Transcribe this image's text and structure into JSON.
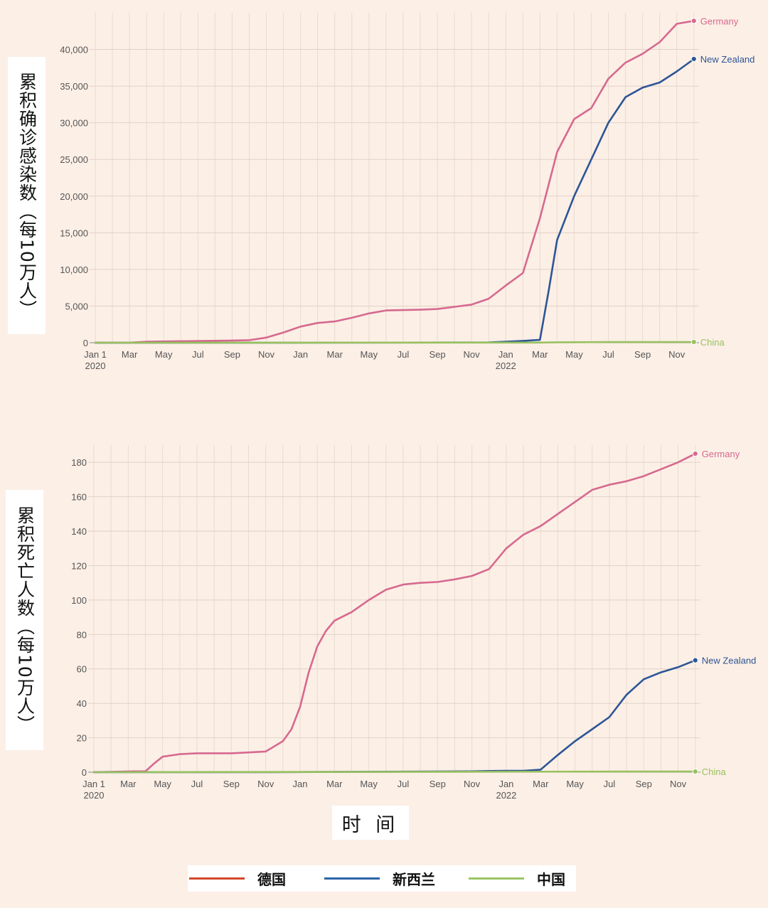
{
  "chart_data": [
    {
      "type": "line",
      "id": "cases",
      "ylabel": "累积确诊感染数（每10万人）",
      "ylim": [
        0,
        45000
      ],
      "yticks": [
        0,
        5000,
        10000,
        15000,
        20000,
        25000,
        30000,
        35000,
        40000
      ],
      "ytick_labels": [
        "0",
        "5,000",
        "10,000",
        "15,000",
        "20,000",
        "25,000",
        "30,000",
        "35,000",
        "40,000"
      ],
      "x_unit": "months since Jan 1 2020",
      "xlim": [
        0,
        35.3
      ],
      "xticks": [
        0,
        2,
        4,
        6,
        8,
        10,
        12,
        14,
        16,
        18,
        20,
        22,
        24,
        26,
        28,
        30,
        32,
        34
      ],
      "xtick_labels": [
        "Jan 1",
        "Mar",
        "May",
        "Jul",
        "Sep",
        "Nov",
        "Jan",
        "Mar",
        "May",
        "Jul",
        "Sep",
        "Nov",
        "Jan",
        "Mar",
        "May",
        "Jul",
        "Sep",
        "Nov"
      ],
      "xtick_sublabels": [
        {
          "at": 0,
          "text": "2020"
        },
        {
          "at": 24,
          "text": "2022"
        }
      ],
      "grid": true,
      "series": [
        {
          "name": "Germany",
          "color": "#d6698f",
          "x": [
            0,
            2,
            3,
            8,
            9,
            10,
            11,
            12,
            13,
            14,
            15,
            16,
            17,
            18,
            19,
            20,
            21,
            22,
            23,
            24,
            25,
            26,
            27,
            28,
            29,
            30,
            31,
            32,
            33,
            34,
            35
          ],
          "y": [
            0,
            10,
            150,
            300,
            350,
            700,
            1400,
            2200,
            2700,
            2900,
            3400,
            4000,
            4400,
            4450,
            4500,
            4600,
            4900,
            5200,
            6000,
            7800,
            9500,
            17000,
            26000,
            30500,
            32000,
            36000,
            38200,
            39400,
            41000,
            43500,
            43900
          ]
        },
        {
          "name": "New Zealand",
          "color": "#2d5596",
          "x": [
            0,
            11,
            22,
            23,
            24,
            25,
            26,
            26.5,
            27,
            28,
            29,
            30,
            31,
            32,
            33,
            34,
            35
          ],
          "y": [
            0,
            0,
            30,
            50,
            150,
            250,
            400,
            7000,
            14000,
            20000,
            25000,
            30000,
            33500,
            34800,
            35500,
            37000,
            38700
          ]
        },
        {
          "name": "China",
          "color": "#98c160",
          "x": [
            0,
            10,
            20,
            26,
            27,
            30,
            35
          ],
          "y": [
            0,
            10,
            15,
            20,
            60,
            90,
            100
          ]
        }
      ],
      "end_labels": [
        "Germany",
        "New Zealand",
        "China"
      ]
    },
    {
      "type": "line",
      "id": "deaths",
      "ylabel": "累积死亡人数（每10万人）",
      "ylim": [
        0,
        190
      ],
      "yticks": [
        0,
        20,
        40,
        60,
        80,
        100,
        120,
        140,
        160,
        180
      ],
      "ytick_labels": [
        "0",
        "20",
        "40",
        "60",
        "80",
        "100",
        "120",
        "140",
        "160",
        "180"
      ],
      "x_unit": "months since Jan 1 2020",
      "xlim": [
        0,
        35.3
      ],
      "xticks": [
        0,
        2,
        4,
        6,
        8,
        10,
        12,
        14,
        16,
        18,
        20,
        22,
        24,
        26,
        28,
        30,
        32,
        34
      ],
      "xtick_labels": [
        "Jan 1",
        "Mar",
        "May",
        "Jul",
        "Sep",
        "Nov",
        "Jan",
        "Mar",
        "May",
        "Jul",
        "Sep",
        "Nov",
        "Jan",
        "Mar",
        "May",
        "Jul",
        "Sep",
        "Nov"
      ],
      "xtick_sublabels": [
        {
          "at": 0,
          "text": "2020"
        },
        {
          "at": 24,
          "text": "2022"
        }
      ],
      "grid": true,
      "series": [
        {
          "name": "Germany",
          "color": "#d6698f",
          "x": [
            0,
            2.3,
            3,
            3.5,
            4,
            5,
            6,
            7,
            8,
            9,
            10,
            11,
            11.5,
            12,
            12.5,
            13,
            13.5,
            14,
            15,
            16,
            17,
            18,
            19,
            20,
            21,
            22,
            23,
            24,
            25,
            26,
            27,
            28,
            29,
            30,
            31,
            32,
            33,
            34,
            35
          ],
          "y": [
            0,
            0.5,
            0.5,
            5,
            9,
            10.5,
            11,
            11,
            11,
            11.5,
            12,
            18,
            25,
            38,
            58,
            73,
            82,
            88,
            93,
            100,
            106,
            109,
            110,
            110.5,
            112,
            114,
            118,
            130,
            138,
            143,
            150,
            157,
            164,
            167,
            169,
            172,
            176,
            180,
            185
          ]
        },
        {
          "name": "New Zealand",
          "color": "#2d5596",
          "x": [
            0,
            10,
            22,
            23,
            24,
            25,
            26,
            27,
            28,
            29,
            30,
            31,
            32,
            33,
            34,
            35
          ],
          "y": [
            0,
            0,
            0.5,
            0.7,
            0.8,
            0.8,
            1.5,
            10,
            18,
            25,
            32,
            45,
            54,
            58,
            61,
            65
          ]
        },
        {
          "name": "China",
          "color": "#98c160",
          "x": [
            0,
            35
          ],
          "y": [
            0,
            0.4
          ]
        }
      ],
      "end_labels": [
        "Germany",
        "New Zealand",
        "China"
      ]
    }
  ],
  "xlabel": "时 间",
  "legend": [
    {
      "label": "德国",
      "color": "#d4472c"
    },
    {
      "label": "新西兰",
      "color": "#2a64a8"
    },
    {
      "label": "中国",
      "color": "#9cc566"
    }
  ]
}
